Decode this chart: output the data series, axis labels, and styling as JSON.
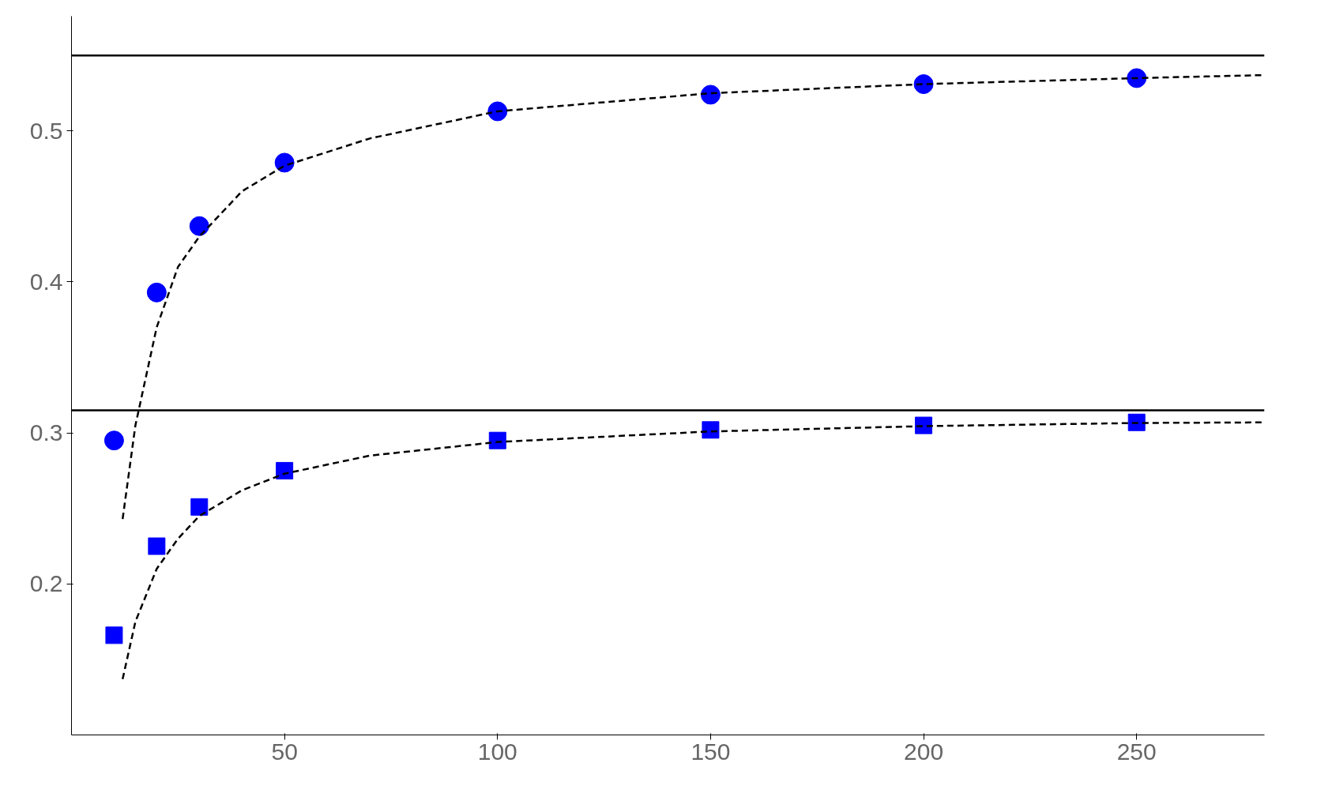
{
  "chart_data": {
    "type": "scatter",
    "xlim": [
      0,
      280
    ],
    "ylim": [
      0.1,
      0.576
    ],
    "xticks": [
      50,
      100,
      150,
      200,
      250
    ],
    "yticks": [
      0.2,
      0.3,
      0.4,
      0.5
    ],
    "grid": false,
    "series": [
      {
        "color": "#0000ff",
        "marker": "circle",
        "x": [
          10,
          20,
          30,
          50,
          100,
          150,
          200,
          250
        ],
        "values": [
          0.295,
          0.393,
          0.437,
          0.479,
          0.513,
          0.524,
          0.531,
          0.535
        ]
      },
      {
        "color": "#0000ff",
        "marker": "square",
        "x": [
          10,
          20,
          30,
          50,
          100,
          150,
          200,
          250
        ],
        "values": [
          0.166,
          0.225,
          0.251,
          0.275,
          0.295,
          0.302,
          0.305,
          0.307
        ]
      },
      {
        "type": "line",
        "color": "#000000",
        "line_style": "dashed",
        "marker": "none",
        "x": [
          12,
          15,
          20,
          25,
          30,
          40,
          50,
          70,
          100,
          150,
          200,
          250,
          280
        ],
        "values": [
          0.243,
          0.305,
          0.37,
          0.41,
          0.43,
          0.46,
          0.477,
          0.495,
          0.513,
          0.525,
          0.531,
          0.535,
          0.537
        ]
      },
      {
        "type": "line",
        "color": "#000000",
        "line_style": "dashed",
        "marker": "none",
        "x": [
          12,
          15,
          20,
          25,
          30,
          40,
          50,
          70,
          100,
          150,
          200,
          250,
          280
        ],
        "values": [
          0.137,
          0.175,
          0.21,
          0.23,
          0.245,
          0.262,
          0.273,
          0.285,
          0.294,
          0.301,
          0.3045,
          0.3066,
          0.307
        ]
      }
    ],
    "ref_lines": [
      {
        "axis": "y",
        "value": 0.55,
        "color": "#000000"
      },
      {
        "axis": "y",
        "value": 0.315,
        "color": "#000000"
      }
    ]
  }
}
